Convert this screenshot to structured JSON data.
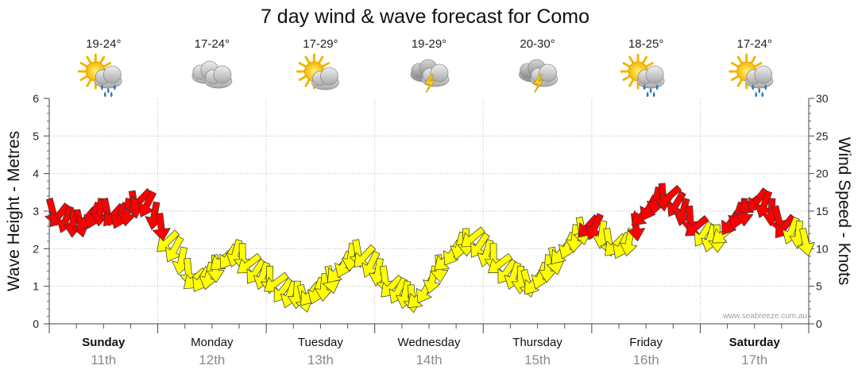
{
  "chart_data": {
    "type": "line",
    "title": "7 day wind & wave forecast for Como",
    "ylabel_left": "Wave Height - Metres",
    "ylabel_right": "Wind Speed - Knots",
    "ylim_left": [
      0,
      6
    ],
    "ylim_right": [
      0,
      30
    ],
    "yticks_left": [
      "0",
      "1",
      "2",
      "3",
      "4",
      "5",
      "6"
    ],
    "yticks_right": [
      "0",
      "5",
      "10",
      "15",
      "20",
      "25",
      "30"
    ],
    "watermark": "www.seabreeze.com.au",
    "days": [
      {
        "name": "Sunday",
        "date": "11th",
        "temp": "19-24°",
        "weather": "sun-cloud-rain-icon",
        "bold": true
      },
      {
        "name": "Monday",
        "date": "12th",
        "temp": "17-24°",
        "weather": "cloud-icon",
        "bold": false
      },
      {
        "name": "Tuesday",
        "date": "13th",
        "temp": "17-29°",
        "weather": "sun-cloud-icon",
        "bold": false
      },
      {
        "name": "Wednesday",
        "date": "14th",
        "temp": "19-29°",
        "weather": "storm-icon",
        "bold": false
      },
      {
        "name": "Thursday",
        "date": "15th",
        "temp": "20-30°",
        "weather": "storm-icon",
        "bold": false
      },
      {
        "name": "Friday",
        "date": "16th",
        "temp": "18-25°",
        "weather": "sun-cloud-rain-icon",
        "bold": false
      },
      {
        "name": "Saturday",
        "date": "17th",
        "temp": "17-24°",
        "weather": "sun-cloud-rain-icon",
        "bold": true
      }
    ],
    "wind_series": {
      "name": "Wind Speed (knots)",
      "points_per_day": 16,
      "strong_threshold": 13,
      "colors": {
        "light": "#ffff00",
        "strong": "#ff0000",
        "outline": "#333333"
      },
      "values": [
        15,
        14.5,
        14,
        13.5,
        13.5,
        14,
        14.5,
        15,
        15,
        14.5,
        14.5,
        15,
        16,
        16.5,
        16,
        14.5,
        13,
        11,
        10,
        8.5,
        7,
        6,
        6,
        6.5,
        7.5,
        8.5,
        9,
        9.5,
        9,
        8,
        7,
        6.5,
        6,
        5.5,
        4.5,
        4,
        4,
        3.5,
        4,
        4.5,
        5,
        6,
        7,
        8,
        9,
        9.5,
        9,
        8,
        7,
        6,
        5,
        4.5,
        4,
        3.5,
        3.5,
        4.5,
        6,
        7.5,
        8.5,
        9.5,
        10.5,
        11,
        11.5,
        10.5,
        9.5,
        9,
        8,
        7,
        6.5,
        6,
        5.5,
        5.5,
        6.5,
        7.5,
        8.5,
        9.5,
        10.5,
        11.5,
        12.5,
        13,
        13,
        12,
        11,
        10.5,
        10.5,
        11,
        13,
        14.5,
        15.5,
        16.5,
        17,
        17,
        16,
        15,
        14,
        13,
        12,
        11.5,
        11.5,
        12,
        13.5,
        14.5,
        15,
        16,
        16.5,
        16,
        15,
        14,
        13,
        12.5,
        12,
        11
      ]
    }
  }
}
